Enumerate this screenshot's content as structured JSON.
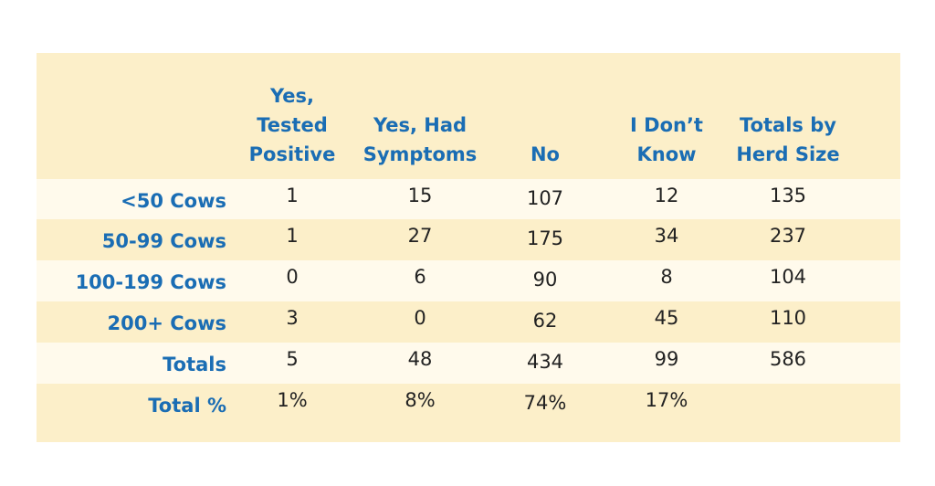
{
  "table": {
    "header": [
      [
        "Yes,",
        "Tested",
        "Positive"
      ],
      [
        "Yes, Had",
        "Symptoms"
      ],
      [
        "No"
      ],
      [
        "I Don’t",
        "Know"
      ],
      [
        "Totals by",
        "Herd Size"
      ]
    ],
    "rows": [
      {
        "label": "<50 Cows",
        "cells": [
          "1",
          "15",
          "107",
          "12",
          "135"
        ]
      },
      {
        "label": "50-99 Cows",
        "cells": [
          "1",
          "27",
          "175",
          "34",
          "237"
        ]
      },
      {
        "label": "100-199 Cows",
        "cells": [
          "0",
          "6",
          "90",
          "8",
          "104"
        ]
      },
      {
        "label": "200+ Cows",
        "cells": [
          "3",
          "0",
          "62",
          "45",
          "110"
        ]
      },
      {
        "label": "Totals",
        "cells": [
          "5",
          "48",
          "434",
          "99",
          "586"
        ]
      },
      {
        "label": "Total %",
        "cells": [
          "1%",
          "8%",
          "74%",
          "17%"
        ]
      }
    ]
  }
}
